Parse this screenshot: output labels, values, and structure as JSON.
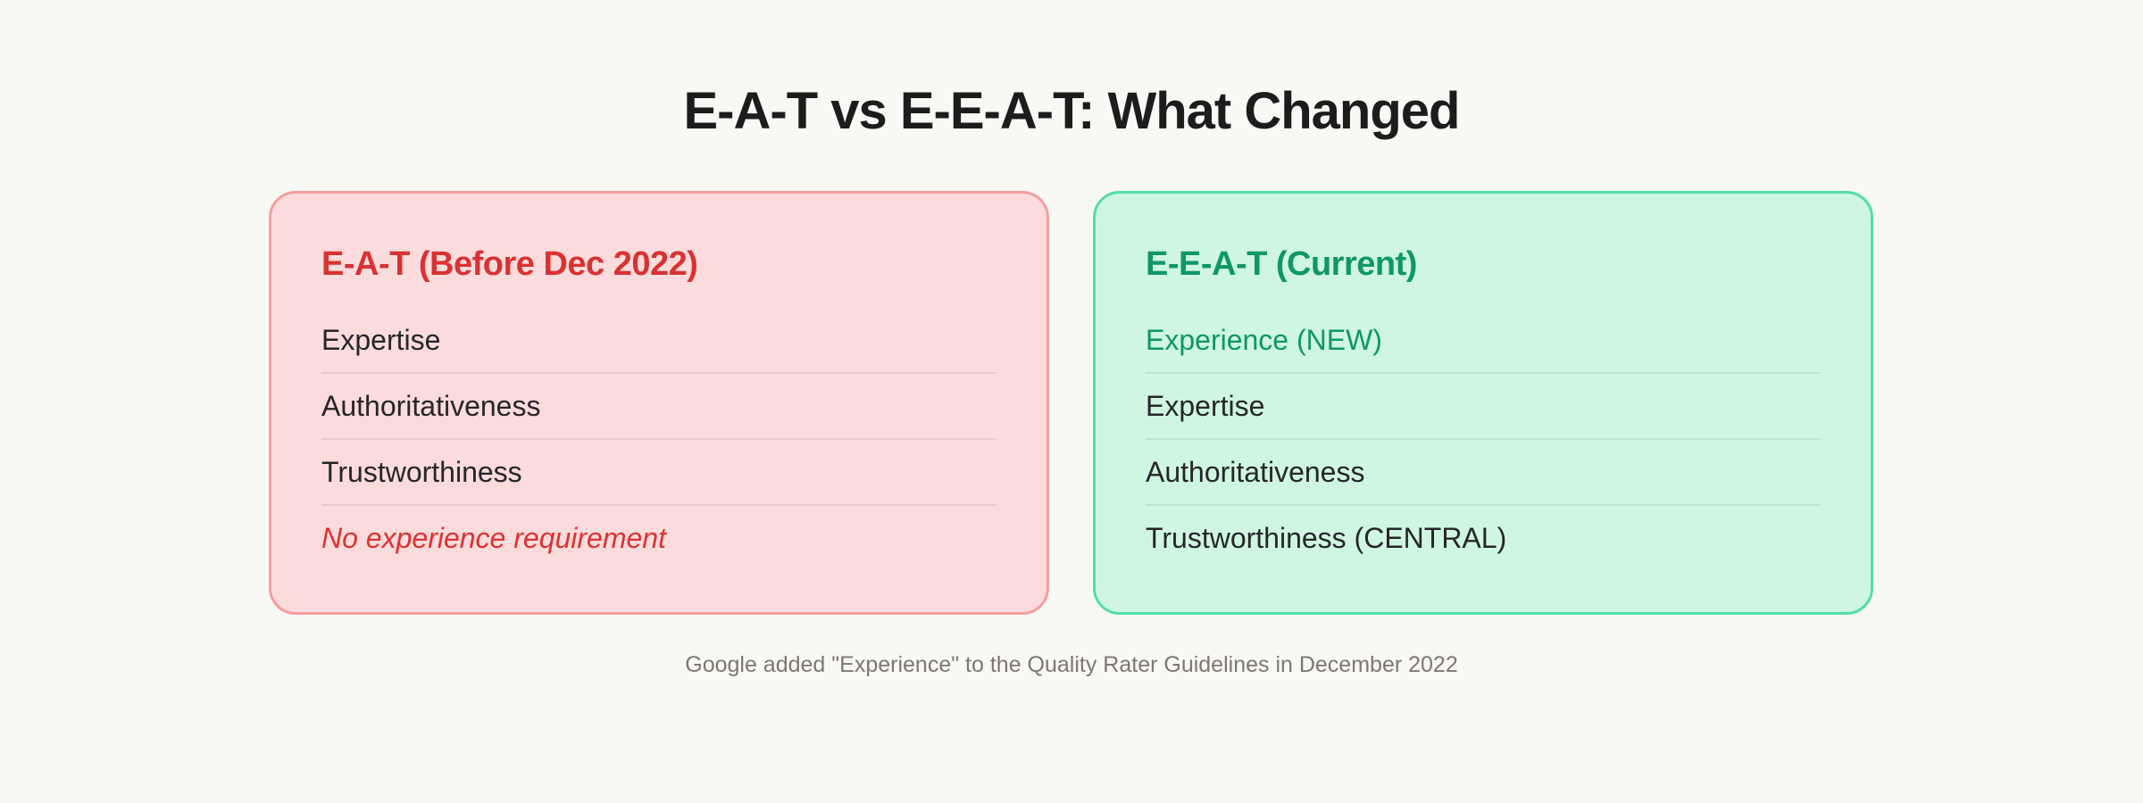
{
  "title": "E-A-T vs E-E-A-T: What Changed",
  "footer": "Google added \"Experience\" to the Quality Rater Guidelines in December 2022",
  "colors": {
    "page_bg": "#F8F8F5",
    "title_text": "#1C1C1C",
    "before_card_bg": "#FBDBDB",
    "before_card_border": "#F59E9E",
    "before_accent_red": "#D93232",
    "current_card_bg": "#CFF6E1",
    "current_card_border": "#52DFA4",
    "current_accent_green": "#0E9768",
    "list_text": "#26262A",
    "divider": "rgba(0,0,0,0.07)",
    "footer_text": "#7E786F"
  },
  "cards": {
    "before": {
      "header": "E-A-T (Before Dec 2022)",
      "rows": [
        {
          "label": "Expertise",
          "style": "normal"
        },
        {
          "label": "Authoritativeness",
          "style": "normal"
        },
        {
          "label": "Trustworthiness",
          "style": "normal"
        },
        {
          "label": "No experience requirement",
          "style": "red-italic"
        }
      ]
    },
    "current": {
      "header": "E-E-A-T (Current)",
      "rows": [
        {
          "label": "Experience (NEW)",
          "style": "green-bold"
        },
        {
          "label": "Expertise",
          "style": "normal"
        },
        {
          "label": "Authoritativeness",
          "style": "normal"
        },
        {
          "label": "Trustworthiness (CENTRAL)",
          "style": "normal"
        }
      ]
    }
  }
}
